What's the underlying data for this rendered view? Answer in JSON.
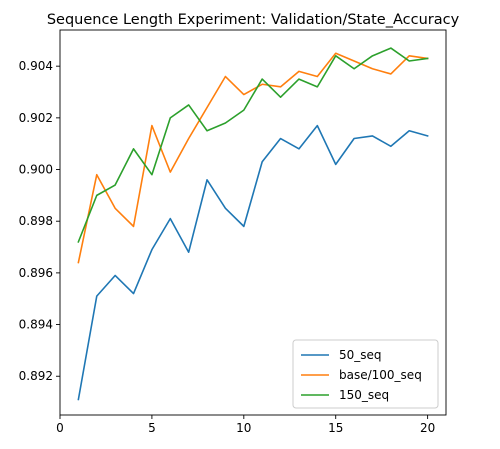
{
  "chart_data": {
    "type": "line",
    "title": "Sequence Length Experiment: Validation/State_Accuracy",
    "xlabel": "",
    "ylabel": "",
    "xlim": [
      0,
      21
    ],
    "ylim": [
      0.8905,
      0.9054
    ],
    "xticks": [
      0,
      5,
      10,
      15,
      20
    ],
    "yticks": [
      0.892,
      0.894,
      0.896,
      0.898,
      0.9,
      0.902,
      0.904
    ],
    "x": [
      1,
      2,
      3,
      4,
      5,
      6,
      7,
      8,
      9,
      10,
      11,
      12,
      13,
      14,
      15,
      16,
      17,
      18,
      19,
      20
    ],
    "grid": false,
    "legend_position": "lower-right",
    "series": [
      {
        "name": "50_seq",
        "color": "#1f77b4",
        "values": [
          0.8911,
          0.8951,
          0.8959,
          0.8952,
          0.8969,
          0.8981,
          0.8968,
          0.8996,
          0.8985,
          0.8978,
          0.9003,
          0.9012,
          0.9008,
          0.9017,
          0.9002,
          0.9012,
          0.9013,
          0.9009,
          0.9015,
          0.9013
        ]
      },
      {
        "name": "base/100_seq",
        "color": "#ff7f0e",
        "values": [
          0.8964,
          0.8998,
          0.8985,
          0.8978,
          0.9017,
          0.8999,
          0.9012,
          0.9024,
          0.9036,
          0.9029,
          0.9033,
          0.9032,
          0.9038,
          0.9036,
          0.9045,
          0.9042,
          0.9039,
          0.9037,
          0.9044,
          0.9043
        ]
      },
      {
        "name": "150_seq",
        "color": "#2ca02c",
        "values": [
          0.8972,
          0.899,
          0.8994,
          0.9008,
          0.8998,
          0.902,
          0.9025,
          0.9015,
          0.9018,
          0.9023,
          0.9035,
          0.9028,
          0.9035,
          0.9032,
          0.9044,
          0.9039,
          0.9044,
          0.9047,
          0.9042,
          0.9043
        ]
      }
    ]
  }
}
